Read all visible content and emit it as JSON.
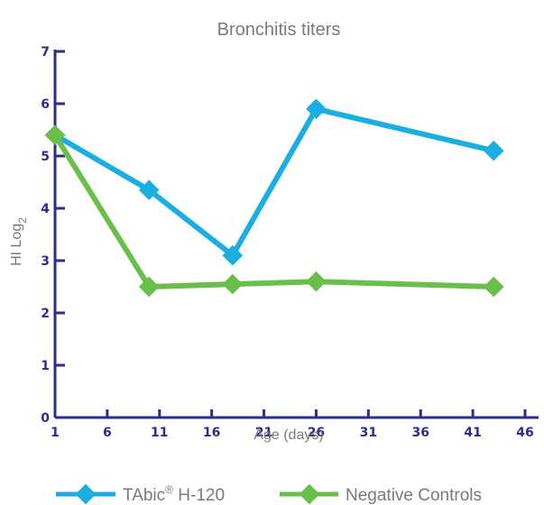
{
  "chart_data": {
    "type": "line",
    "title": "Bronchitis titers",
    "xlabel": "Age (days)",
    "ylabel": "HI Log",
    "ylabel_subscript": "2",
    "xlim": [
      1,
      46
    ],
    "ylim": [
      0,
      7
    ],
    "x_ticks": [
      1,
      6,
      11,
      16,
      21,
      26,
      31,
      36,
      41,
      46
    ],
    "y_ticks": [
      0,
      1,
      2,
      3,
      4,
      5,
      6,
      7
    ],
    "grid": false,
    "legend_position": "bottom",
    "series": [
      {
        "name": "TAbic® H-120",
        "legend_base": "TAbic",
        "legend_sup": "®",
        "legend_suffix": " H-120",
        "color": "#1aaee3",
        "x": [
          1,
          10,
          18,
          26,
          43
        ],
        "y": [
          5.4,
          4.35,
          3.1,
          5.9,
          5.1
        ]
      },
      {
        "name": "Negative Controls",
        "color": "#6abf4b",
        "x": [
          1,
          10,
          18,
          26,
          43
        ],
        "y": [
          5.4,
          2.5,
          2.55,
          2.6,
          2.5
        ]
      }
    ]
  }
}
